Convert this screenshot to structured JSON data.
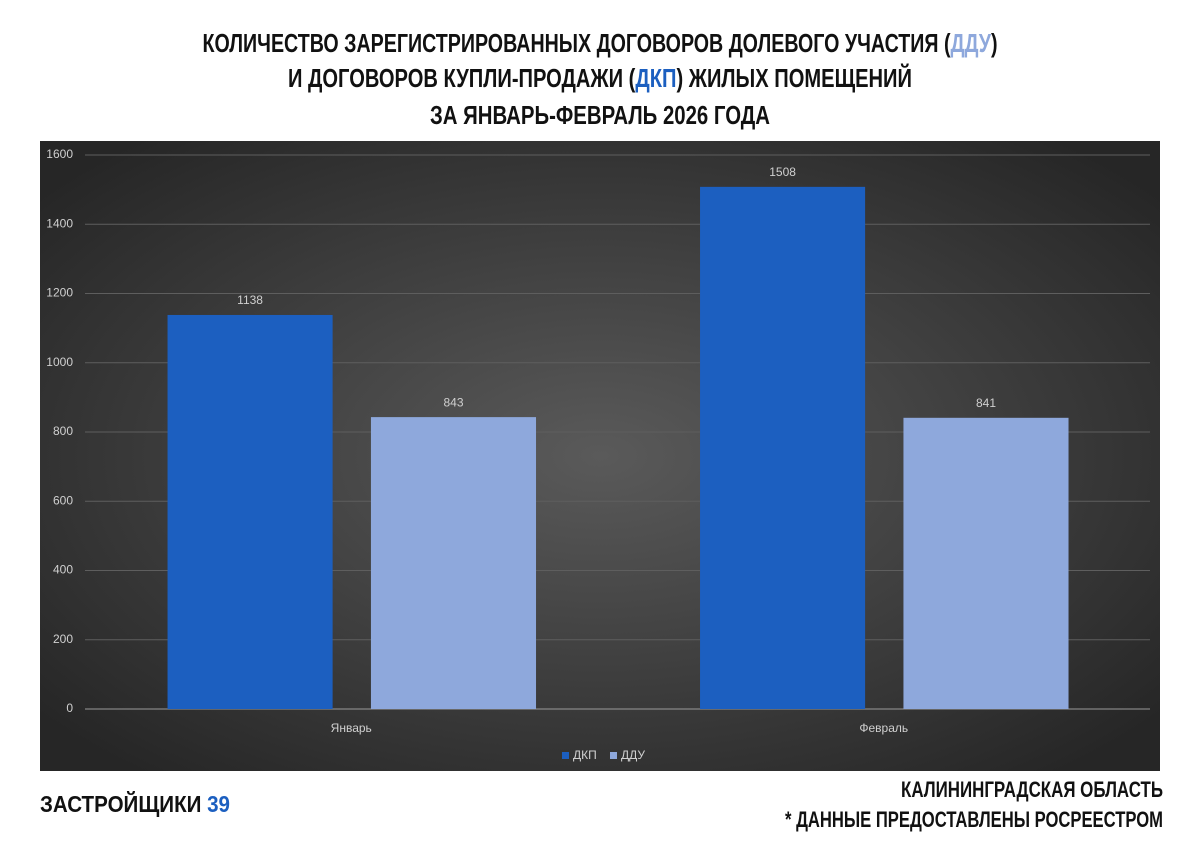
{
  "chart_data": {
    "type": "bar",
    "title": [
      [
        "КОЛИЧЕСТВО ЗАРЕГИСТРИРОВАННЫХ ДОГОВОРОВ ДОЛЕВОГО УЧАСТИЯ (",
        "ДДУ",
        ")"
      ],
      [
        "И ДОГОВОРОВ КУПЛИ-ПРОДАЖИ (",
        "ДКП",
        ") ЖИЛЫХ ПОМЕЩЕНИЙ"
      ],
      [
        "ЗА ЯНВАРЬ-ФЕВРАЛЬ 2026 ГОДА"
      ]
    ],
    "categories": [
      "Январь",
      "Февраль"
    ],
    "series": [
      {
        "name": "ДКП",
        "color": "#1c5fc0",
        "values": [
          1138,
          1508
        ]
      },
      {
        "name": "ДДУ",
        "color": "#8ea8dc",
        "values": [
          843,
          841
        ]
      }
    ],
    "ylim": [
      0,
      1600
    ],
    "yticks": [
      0,
      200,
      400,
      600,
      800,
      1000,
      1200,
      1400,
      1600
    ],
    "grid": true,
    "legend": "bottom"
  },
  "footer": {
    "brand": [
      "ЗАСТРОЙЩИКИ ",
      "39"
    ],
    "brand_color": "#1c5fc0",
    "region": "КАЛИНИНГРАДСКАЯ ОБЛАСТЬ",
    "source": "* ДАННЫЕ ПРЕДОСТАВЛЕНЫ РОСРЕЕСТРОМ"
  }
}
